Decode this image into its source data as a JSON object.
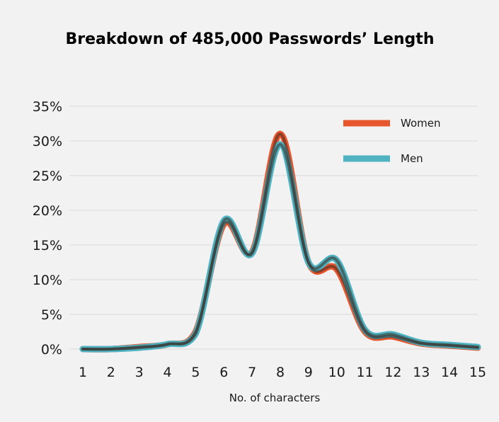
{
  "chart_data": {
    "type": "line",
    "title": "Breakdown of 485,000 Passwords’ Length",
    "xlabel": "No. of characters",
    "ylabel": "",
    "x": [
      1,
      2,
      3,
      4,
      5,
      6,
      7,
      8,
      9,
      10,
      11,
      12,
      13,
      14,
      15
    ],
    "xlim": [
      1,
      15
    ],
    "ylim": [
      0,
      35
    ],
    "yticks": [
      "0%",
      "5%",
      "10%",
      "15%",
      "20%",
      "25%",
      "30%",
      "35%"
    ],
    "grid": true,
    "legend_position": "top-right",
    "series": [
      {
        "name": "Women",
        "color": "#e8562d",
        "values": [
          0,
          0,
          0.3,
          0.7,
          2.5,
          18,
          14,
          31,
          12.5,
          11.5,
          2.5,
          1.8,
          0.8,
          0.5,
          0.2
        ]
      },
      {
        "name": "Men",
        "color": "#4fb3c2",
        "values": [
          0,
          0,
          0.2,
          0.7,
          2.2,
          18.5,
          13.8,
          29.5,
          12.5,
          12.8,
          2.8,
          2.1,
          0.9,
          0.6,
          0.3
        ]
      }
    ]
  }
}
